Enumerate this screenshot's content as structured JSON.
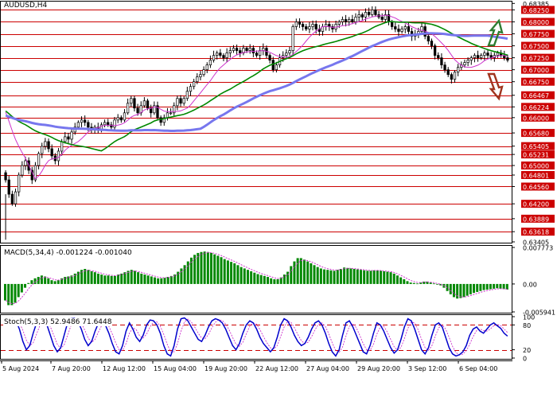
{
  "symbol": "AUDUSD,H4",
  "chart_data": [
    {
      "type": "candlestick",
      "title": "AUDUSD,H4",
      "ylim": [
        0.63405,
        0.6839
      ],
      "grid": false,
      "y_ticks": [
        "0.68385",
        "0.68250",
        "0.68000",
        "0.67750",
        "0.67500",
        "0.67250",
        "0.67000",
        "0.66750",
        "0.66467",
        "0.66224",
        "0.66000",
        "0.65680",
        "0.65405",
        "0.65231",
        "0.65000",
        "0.64801",
        "0.64560",
        "0.64200",
        "0.63889",
        "0.63618",
        "0.63405"
      ],
      "support_resistance_levels": [
        "0.68250",
        "0.68000",
        "0.67750",
        "0.67500",
        "0.67250",
        "0.67000",
        "0.66750",
        "0.66467",
        "0.66224",
        "0.66000",
        "0.65680",
        "0.65405",
        "0.65231",
        "0.65000",
        "0.64801",
        "0.64560",
        "0.64200",
        "0.63889",
        "0.63618"
      ],
      "level_color": "#cc0000",
      "close_series": [
        0.647,
        0.644,
        0.642,
        0.6445,
        0.648,
        0.65,
        0.651,
        0.649,
        0.647,
        0.65,
        0.6525,
        0.654,
        0.655,
        0.6535,
        0.652,
        0.651,
        0.653,
        0.655,
        0.656,
        0.6555,
        0.657,
        0.658,
        0.659,
        0.6595,
        0.659,
        0.658,
        0.6575,
        0.658,
        0.6575,
        0.6585,
        0.659,
        0.6585,
        0.658,
        0.6595,
        0.66,
        0.6595,
        0.661,
        0.663,
        0.664,
        0.662,
        0.661,
        0.6625,
        0.6635,
        0.662,
        0.661,
        0.6625,
        0.66,
        0.659,
        0.66,
        0.661,
        0.661,
        0.6625,
        0.664,
        0.663,
        0.664,
        0.6655,
        0.6665,
        0.6675,
        0.6685,
        0.669,
        0.67,
        0.671,
        0.672,
        0.673,
        0.6735,
        0.673,
        0.6725,
        0.6735,
        0.674,
        0.6745,
        0.674,
        0.6735,
        0.6745,
        0.674,
        0.6745,
        0.6735,
        0.673,
        0.674,
        0.6745,
        0.673,
        0.672,
        0.67,
        0.671,
        0.6725,
        0.673,
        0.6735,
        0.674,
        0.679,
        0.68,
        0.6795,
        0.679,
        0.6785,
        0.679,
        0.6795,
        0.6785,
        0.678,
        0.679,
        0.6795,
        0.679,
        0.6785,
        0.6795,
        0.68,
        0.6805,
        0.68,
        0.6805,
        0.68,
        0.681,
        0.6815,
        0.681,
        0.682,
        0.6815,
        0.6825,
        0.6815,
        0.681,
        0.6805,
        0.6815,
        0.68,
        0.679,
        0.6785,
        0.678,
        0.6785,
        0.679,
        0.678,
        0.677,
        0.6775,
        0.678,
        0.679,
        0.677,
        0.676,
        0.675,
        0.673,
        0.6725,
        0.671,
        0.67,
        0.669,
        0.668,
        0.6695,
        0.6705,
        0.671,
        0.6715,
        0.672,
        0.6725,
        0.673,
        0.6725,
        0.673,
        0.6735,
        0.673,
        0.6725,
        0.673,
        0.6735,
        0.673,
        0.6725,
        0.672
      ],
      "series": [
        {
          "color": "#cc33cc"
        },
        {
          "color": "#008800"
        },
        {
          "color": "#7777ee"
        }
      ],
      "arrows": [
        {
          "direction": "up",
          "color": "#2e7d32"
        },
        {
          "direction": "down",
          "color": "#a0341e"
        }
      ]
    },
    {
      "type": "bar",
      "title": "MACD(5,34,4) -0.001224 -0.001040",
      "y_ticks": [
        "0.007773",
        "0.00",
        "-0.005941"
      ],
      "ylim": [
        -0.005941,
        0.007773
      ],
      "bar_color": "#008800",
      "signal_color": "#cc33cc",
      "values": [
        -0.0035,
        -0.0045,
        -0.0045,
        -0.004,
        -0.0028,
        -0.0018,
        -0.0008,
        0.0002,
        0.0008,
        0.0012,
        0.0015,
        0.0018,
        0.0016,
        0.0012,
        0.0008,
        0.0006,
        0.0008,
        0.0012,
        0.0015,
        0.0016,
        0.0018,
        0.0022,
        0.0026,
        0.003,
        0.0032,
        0.003,
        0.0027,
        0.0025,
        0.0022,
        0.002,
        0.0018,
        0.0018,
        0.0017,
        0.0017,
        0.002,
        0.0022,
        0.0025,
        0.0028,
        0.003,
        0.0028,
        0.0025,
        0.0022,
        0.002,
        0.0018,
        0.0016,
        0.0014,
        0.0012,
        0.0012,
        0.0013,
        0.0015,
        0.0017,
        0.002,
        0.0026,
        0.0033,
        0.004,
        0.0048,
        0.0056,
        0.0062,
        0.0066,
        0.0068,
        0.0069,
        0.0068,
        0.0066,
        0.0063,
        0.006,
        0.0057,
        0.0053,
        0.005,
        0.0047,
        0.0044,
        0.004,
        0.0036,
        0.0033,
        0.003,
        0.0027,
        0.0024,
        0.0021,
        0.0019,
        0.0017,
        0.0015,
        0.0012,
        0.001,
        0.001,
        0.0014,
        0.002,
        0.0026,
        0.0038,
        0.0048,
        0.0055,
        0.0055,
        0.0052,
        0.0048,
        0.0044,
        0.004,
        0.0036,
        0.0033,
        0.0031,
        0.003,
        0.0029,
        0.0028,
        0.003,
        0.0032,
        0.0035,
        0.0034,
        0.0033,
        0.0032,
        0.0031,
        0.003,
        0.0029,
        0.0028,
        0.0028,
        0.0029,
        0.0029,
        0.0028,
        0.0027,
        0.0026,
        0.0025,
        0.0022,
        0.0018,
        0.0014,
        0.001,
        0.0006,
        0.0003,
        0.0002,
        0.0001,
        0.0003,
        0.0005,
        0.0005,
        0.0003,
        0.0001,
        -0.0001,
        -0.0003,
        -0.0008,
        -0.0015,
        -0.0022,
        -0.0028,
        -0.0031,
        -0.003,
        -0.0028,
        -0.0025,
        -0.0022,
        -0.0019,
        -0.0017,
        -0.0015,
        -0.0013,
        -0.0012,
        -0.0011,
        -0.001,
        -0.0009,
        -0.001,
        -0.0011,
        -0.0012
      ]
    },
    {
      "type": "line",
      "title": "Stoch(5,3,3) 52.9486 71.6448",
      "y_ticks": [
        "100",
        "80",
        "20",
        "0"
      ],
      "ylim": [
        0,
        100
      ],
      "levels": [
        80,
        20
      ],
      "k_color": "#0000cc",
      "d_color": "#cc33cc",
      "k": [
        85,
        92,
        95,
        90,
        70,
        40,
        20,
        30,
        60,
        85,
        95,
        92,
        80,
        55,
        30,
        15,
        25,
        55,
        85,
        95,
        96,
        88,
        70,
        45,
        30,
        40,
        65,
        85,
        90,
        80,
        60,
        35,
        15,
        10,
        30,
        65,
        85,
        70,
        50,
        40,
        55,
        80,
        92,
        90,
        80,
        60,
        30,
        10,
        5,
        30,
        70,
        95,
        97,
        90,
        75,
        60,
        45,
        40,
        55,
        75,
        90,
        95,
        92,
        85,
        70,
        50,
        30,
        20,
        35,
        60,
        80,
        90,
        85,
        70,
        50,
        35,
        25,
        15,
        25,
        50,
        80,
        95,
        90,
        75,
        55,
        40,
        30,
        35,
        50,
        70,
        85,
        90,
        80,
        60,
        35,
        15,
        5,
        20,
        55,
        85,
        90,
        75,
        55,
        35,
        15,
        10,
        30,
        60,
        85,
        80,
        65,
        45,
        25,
        12,
        20,
        45,
        75,
        95,
        90,
        70,
        45,
        20,
        10,
        25,
        55,
        80,
        85,
        75,
        50,
        25,
        10,
        5,
        8,
        15,
        30,
        55,
        70,
        75,
        65,
        60,
        70,
        80,
        85,
        78,
        72,
        60,
        53
      ],
      "x_tick_labels": [
        "5 Aug 2024",
        "7 Aug 20:00",
        "12 Aug 12:00",
        "15 Aug 04:00",
        "19 Aug 20:00",
        "22 Aug 12:00",
        "27 Aug 04:00",
        "29 Aug 20:00",
        "3 Sep 12:00",
        "6 Sep 04:00"
      ]
    }
  ]
}
